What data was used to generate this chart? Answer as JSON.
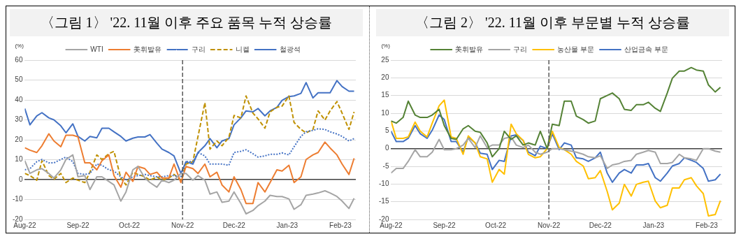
{
  "chart_data": [
    {
      "type": "line",
      "title": "〈그림 1〉 '22. 11월 이후 주요 품목 누적 상승률",
      "ylabel": "(%)",
      "legend": "top",
      "grid": "y",
      "marker": "none",
      "x": [
        "2022-08-01",
        "2022-08-04",
        "2022-08-08",
        "2022-08-11",
        "2022-08-15",
        "2022-08-18",
        "2022-08-22",
        "2022-08-25",
        "2022-08-29",
        "2022-09-01",
        "2022-09-05",
        "2022-09-08",
        "2022-09-12",
        "2022-09-15",
        "2022-09-19",
        "2022-09-22",
        "2022-09-26",
        "2022-09-29",
        "2022-10-03",
        "2022-10-06",
        "2022-10-10",
        "2022-10-13",
        "2022-10-17",
        "2022-10-20",
        "2022-10-24",
        "2022-10-27",
        "2022-10-31",
        "2022-11-03",
        "2022-11-07",
        "2022-11-10",
        "2022-11-14",
        "2022-11-17",
        "2022-11-21",
        "2022-11-24",
        "2022-11-28",
        "2022-12-01",
        "2022-12-05",
        "2022-12-08",
        "2022-12-12",
        "2022-12-15",
        "2022-12-19",
        "2022-12-22",
        "2022-12-26",
        "2022-12-29",
        "2023-01-02",
        "2023-01-05",
        "2023-01-09",
        "2023-01-12",
        "2023-01-16",
        "2023-01-19",
        "2023-01-23",
        "2023-01-26",
        "2023-01-30",
        "2023-02-02",
        "2023-02-06",
        "2023-02-09"
      ],
      "xlim": [
        "2022-08-01",
        "2023-02-10"
      ],
      "xticks": [
        {
          "value": "2022-08-01",
          "label": "Aug-22"
        },
        {
          "value": "2022-09-01",
          "label": "Sep-22"
        },
        {
          "value": "2022-10-01",
          "label": "Oct-22"
        },
        {
          "value": "2022-11-01",
          "label": "Nov-22"
        },
        {
          "value": "2022-12-01",
          "label": "Dec-22"
        },
        {
          "value": "2023-01-01",
          "label": "Jan-23"
        },
        {
          "value": "2023-02-01",
          "label": "Feb-23"
        }
      ],
      "ylim": [
        -20,
        60
      ],
      "yticks": [
        -20,
        -10,
        0,
        10,
        20,
        30,
        40,
        50,
        60
      ],
      "ref_lines": [
        {
          "axis": "x",
          "value": "2022-11-01",
          "color": "#595959",
          "line_style": "dashed"
        }
      ],
      "series": [
        {
          "name": "WTI",
          "color": "#a5a5a5",
          "line_style": "solid",
          "values": [
            9.5,
            3.1,
            4.9,
            5.5,
            3.1,
            0.8,
            4.9,
            10.1,
            12.4,
            1.4,
            2,
            -5,
            1.4,
            1.4,
            -0.9,
            -2.7,
            -10.8,
            -6.2,
            4.9,
            6.6,
            0.8,
            -1.5,
            -3.8,
            -0.3,
            -1.5,
            -0.3,
            3.1,
            3.1,
            -0.3,
            2,
            -0.3,
            -7.3,
            -6.2,
            -11.4,
            -10.8,
            -6.2,
            -12,
            -17.2,
            -15.5,
            -13.1,
            -10.8,
            -7.9,
            -8.5,
            -8.5,
            -9.7,
            -14.9,
            -12.6,
            -7.9,
            -7.3,
            -6.7,
            -5.6,
            -6.7,
            -8.5,
            -10.8,
            -14.5,
            -9.4
          ]
        },
        {
          "name": "美휘발유",
          "color": "#ed7d31",
          "line_style": "solid",
          "values": [
            16,
            14.8,
            13.6,
            17,
            23,
            19.4,
            16.5,
            22.3,
            22.3,
            21.5,
            8.4,
            8.4,
            4.9,
            9.5,
            12.4,
            2,
            -3.8,
            3.7,
            -0.9,
            6.6,
            5.5,
            2.6,
            3.7,
            0.8,
            0.8,
            7.8,
            -1.5,
            6.6,
            5.5,
            3.1,
            7.8,
            1.4,
            3.7,
            -2.7,
            -6.2,
            1.4,
            -5,
            -12,
            -12,
            -1.5,
            -6.2,
            -1.5,
            4.9,
            4.3,
            7.2,
            -1.5,
            1.4,
            10.1,
            12.4,
            13.6,
            18.8,
            15.9,
            12.4,
            7.8,
            2.6,
            10.7
          ]
        },
        {
          "name": "구리",
          "color": "#4472c4",
          "line_style": "dotted",
          "values": [
            4.9,
            5.5,
            9,
            10.1,
            8.4,
            8.4,
            10.1,
            11.3,
            9,
            3.1,
            2.6,
            3.1,
            7.8,
            7.2,
            4.9,
            4.3,
            1.4,
            -0.3,
            1.4,
            2,
            2.6,
            2,
            1.4,
            1.4,
            2,
            2,
            1.4,
            9,
            9,
            13.6,
            11.9,
            7.8,
            7.8,
            7.8,
            7.2,
            13.6,
            14.2,
            15,
            13,
            11.3,
            11.9,
            12.7,
            12.7,
            13.4,
            12.4,
            16.5,
            21.7,
            24,
            24.7,
            25.5,
            25.2,
            24,
            22.9,
            21.7,
            19.4,
            20.6
          ]
        },
        {
          "name": "니켈",
          "color": "#bf9000",
          "line_style": "dashed",
          "values": [
            3.1,
            2,
            -0.3,
            9.5,
            2,
            0.2,
            3.1,
            -1.5,
            0.8,
            -0.3,
            -1.5,
            3.7,
            12.4,
            10.1,
            13,
            14.2,
            0.8,
            -2.7,
            3.7,
            2.6,
            1.4,
            -0.3,
            1.4,
            -0.3,
            0.8,
            2.6,
            -0.3,
            7.8,
            9,
            21.7,
            38.6,
            15.3,
            19.4,
            17,
            21.2,
            32.2,
            31,
            42,
            33.4,
            30.5,
            25.8,
            34,
            36.3,
            36.9,
            42,
            28.7,
            25.2,
            23.5,
            25.2,
            34.5,
            29.9,
            34.5,
            39.2,
            33.4,
            25.2,
            34
          ]
        },
        {
          "name": "철광석",
          "color": "#4472c4",
          "line_style": "solid",
          "values": [
            35.7,
            27.5,
            32,
            33.6,
            31,
            30,
            27,
            23.5,
            28,
            21.7,
            19.4,
            21.7,
            21,
            25.8,
            25.8,
            24,
            21.7,
            19.4,
            20.8,
            21.4,
            21.4,
            22.6,
            18.3,
            15.3,
            13.6,
            11.9,
            3.1,
            9,
            7.8,
            13.6,
            17,
            20.6,
            16,
            19.4,
            20.6,
            27.5,
            31,
            34.5,
            34,
            35.7,
            32,
            34.5,
            36.3,
            39.8,
            41.7,
            42,
            43.3,
            48.7,
            41,
            43.6,
            43.6,
            43.6,
            49.7,
            46.7,
            44.4,
            44.4
          ]
        }
      ]
    },
    {
      "type": "line",
      "title": "〈그림 2〉 '22. 11월 이후 부문별 누적 상승률",
      "ylabel": "(%)",
      "legend": "top",
      "grid": "y",
      "marker": "none",
      "x": [
        "2022-08-01",
        "2022-08-04",
        "2022-08-08",
        "2022-08-11",
        "2022-08-15",
        "2022-08-18",
        "2022-08-22",
        "2022-08-25",
        "2022-08-29",
        "2022-09-01",
        "2022-09-05",
        "2022-09-08",
        "2022-09-12",
        "2022-09-15",
        "2022-09-19",
        "2022-09-22",
        "2022-09-26",
        "2022-09-29",
        "2022-10-03",
        "2022-10-06",
        "2022-10-10",
        "2022-10-13",
        "2022-10-17",
        "2022-10-20",
        "2022-10-24",
        "2022-10-27",
        "2022-10-31",
        "2022-11-03",
        "2022-11-07",
        "2022-11-10",
        "2022-11-14",
        "2022-11-17",
        "2022-11-21",
        "2022-11-24",
        "2022-11-28",
        "2022-12-01",
        "2022-12-05",
        "2022-12-08",
        "2022-12-12",
        "2022-12-15",
        "2022-12-19",
        "2022-12-22",
        "2022-12-26",
        "2022-12-29",
        "2023-01-02",
        "2023-01-05",
        "2023-01-09",
        "2023-01-12",
        "2023-01-16",
        "2023-01-19",
        "2023-01-23",
        "2023-01-26",
        "2023-01-30",
        "2023-02-02",
        "2023-02-06",
        "2023-02-09"
      ],
      "xlim": [
        "2022-08-01",
        "2023-02-10"
      ],
      "xticks": [
        {
          "value": "2022-08-01",
          "label": "Aug-22"
        },
        {
          "value": "2022-09-01",
          "label": "Sep-22"
        },
        {
          "value": "2022-10-01",
          "label": "Oct-22"
        },
        {
          "value": "2022-11-01",
          "label": "Nov-22"
        },
        {
          "value": "2022-12-01",
          "label": "Dec-22"
        },
        {
          "value": "2023-01-01",
          "label": "Jan-23"
        },
        {
          "value": "2023-02-01",
          "label": "Feb-23"
        }
      ],
      "ylim": [
        -20,
        25
      ],
      "yticks": [
        -20,
        -15,
        -10,
        -5,
        0,
        5,
        10,
        15,
        20,
        25
      ],
      "ref_lines": [
        {
          "axis": "x",
          "value": "2022-11-01",
          "color": "#595959",
          "line_style": "dashed"
        }
      ],
      "series": [
        {
          "name": "美휘발유",
          "color": "#548235",
          "line_style": "solid",
          "values": [
            7.8,
            7.2,
            8.8,
            13.4,
            9.5,
            8.8,
            8.8,
            9.5,
            11.1,
            6.5,
            2.9,
            2.6,
            5.6,
            6.5,
            4.9,
            4.6,
            1.6,
            -2.3,
            0,
            4.9,
            2.6,
            3.6,
            1,
            1.6,
            1,
            4.9,
            0,
            6.9,
            6.5,
            13.4,
            13.4,
            9.2,
            8.2,
            7.2,
            7.8,
            14.1,
            15,
            15.7,
            14.1,
            11.1,
            10.8,
            12.4,
            12.4,
            13.1,
            11.4,
            10.5,
            15.7,
            19.9,
            21.9,
            21.9,
            22.9,
            22.2,
            21.9,
            18,
            16,
            17.3
          ]
        },
        {
          "name": "구리",
          "color": "#a5a5a5",
          "line_style": "solid",
          "values": [
            -6.9,
            -5.6,
            -5.6,
            -3.6,
            -0.3,
            -2.3,
            -2.3,
            -1,
            2.6,
            -0.3,
            -0.3,
            0,
            1,
            2.9,
            0.3,
            3.6,
            0.3,
            1,
            1,
            2.9,
            3.3,
            1,
            0.3,
            1,
            -1,
            -1.6,
            -1,
            0,
            0,
            -0.3,
            -0.7,
            -1,
            -1.6,
            -2.3,
            -2.6,
            -2,
            -5.6,
            -4.6,
            -4.2,
            -3.6,
            -3.3,
            -1.6,
            -1,
            -0.5,
            -1,
            -4.2,
            -4.2,
            -3.9,
            -1.6,
            -2.6,
            -2.9,
            -3.3,
            0,
            0,
            -0.7,
            -1
          ]
        },
        {
          "name": "농산물 부문",
          "color": "#ffc000",
          "line_style": "solid",
          "values": [
            7.8,
            2.9,
            2.9,
            3.3,
            7.5,
            4.9,
            3.3,
            7.2,
            12.1,
            13.7,
            3.3,
            2.9,
            -1.6,
            3.6,
            1.6,
            -2.3,
            -2.9,
            -9.5,
            -5.9,
            -7.2,
            6.9,
            4.2,
            2.3,
            -1.6,
            -2.6,
            -2.3,
            0,
            4.9,
            0.3,
            -0.3,
            -1.6,
            -3.6,
            -4.9,
            -8.5,
            -8.2,
            -6.2,
            -12.1,
            -17.3,
            -15.4,
            -10.1,
            -13.4,
            -10.1,
            -9.5,
            -9.2,
            -14.8,
            -16.7,
            -16,
            -11.1,
            -11.1,
            -8.8,
            -8.2,
            -10.5,
            -12.7,
            -19,
            -18.6,
            -14.7
          ]
        },
        {
          "name": "산업금속 부문",
          "color": "#4472c4",
          "line_style": "solid",
          "values": [
            4.9,
            2,
            2,
            2.9,
            6.5,
            4.2,
            2.9,
            5.2,
            9.5,
            8.2,
            2,
            2,
            -1,
            3.3,
            1.6,
            -1.3,
            -1.6,
            -5.9,
            -3.3,
            -3.6,
            3.6,
            3.9,
            2.3,
            -1,
            -2,
            0.7,
            0,
            4.2,
            -0.3,
            1.6,
            1,
            -2.6,
            -2.9,
            -3.6,
            -2.6,
            -1,
            -6.9,
            -9.5,
            -6.9,
            -5.9,
            -6.9,
            -4.6,
            -4.6,
            -4.2,
            -8.2,
            -9.2,
            -6.9,
            -4.9,
            -4.2,
            -2.6,
            -3.3,
            -3.9,
            -5.6,
            -9.2,
            -8.8,
            -7.2
          ]
        }
      ]
    }
  ]
}
